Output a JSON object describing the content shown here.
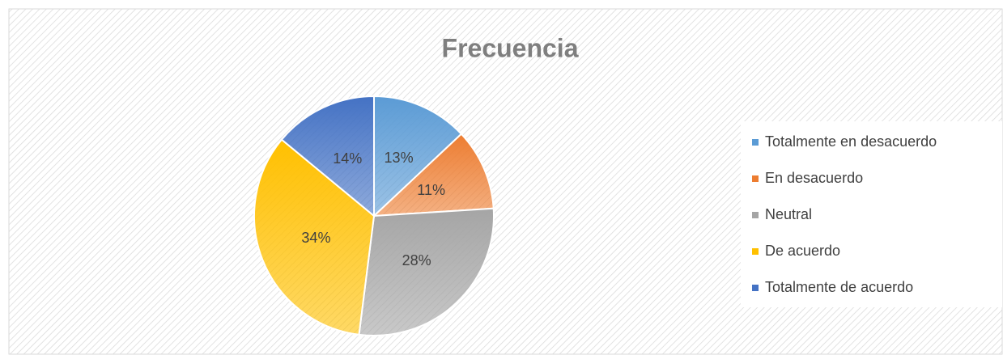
{
  "chart_data": {
    "type": "pie",
    "title": "Frecuencia",
    "categories": [
      "Totalmente en desacuerdo",
      "En desacuerdo",
      "Neutral",
      "De acuerdo",
      "Totalmente de acuerdo"
    ],
    "values": [
      13,
      11,
      28,
      34,
      14
    ],
    "value_labels": [
      "13%",
      "11%",
      "28%",
      "34%",
      "14%"
    ],
    "colors": [
      "#5b9bd5",
      "#ed7d31",
      "#a5a5a5",
      "#ffc000",
      "#4472c4"
    ],
    "legend": "right"
  }
}
